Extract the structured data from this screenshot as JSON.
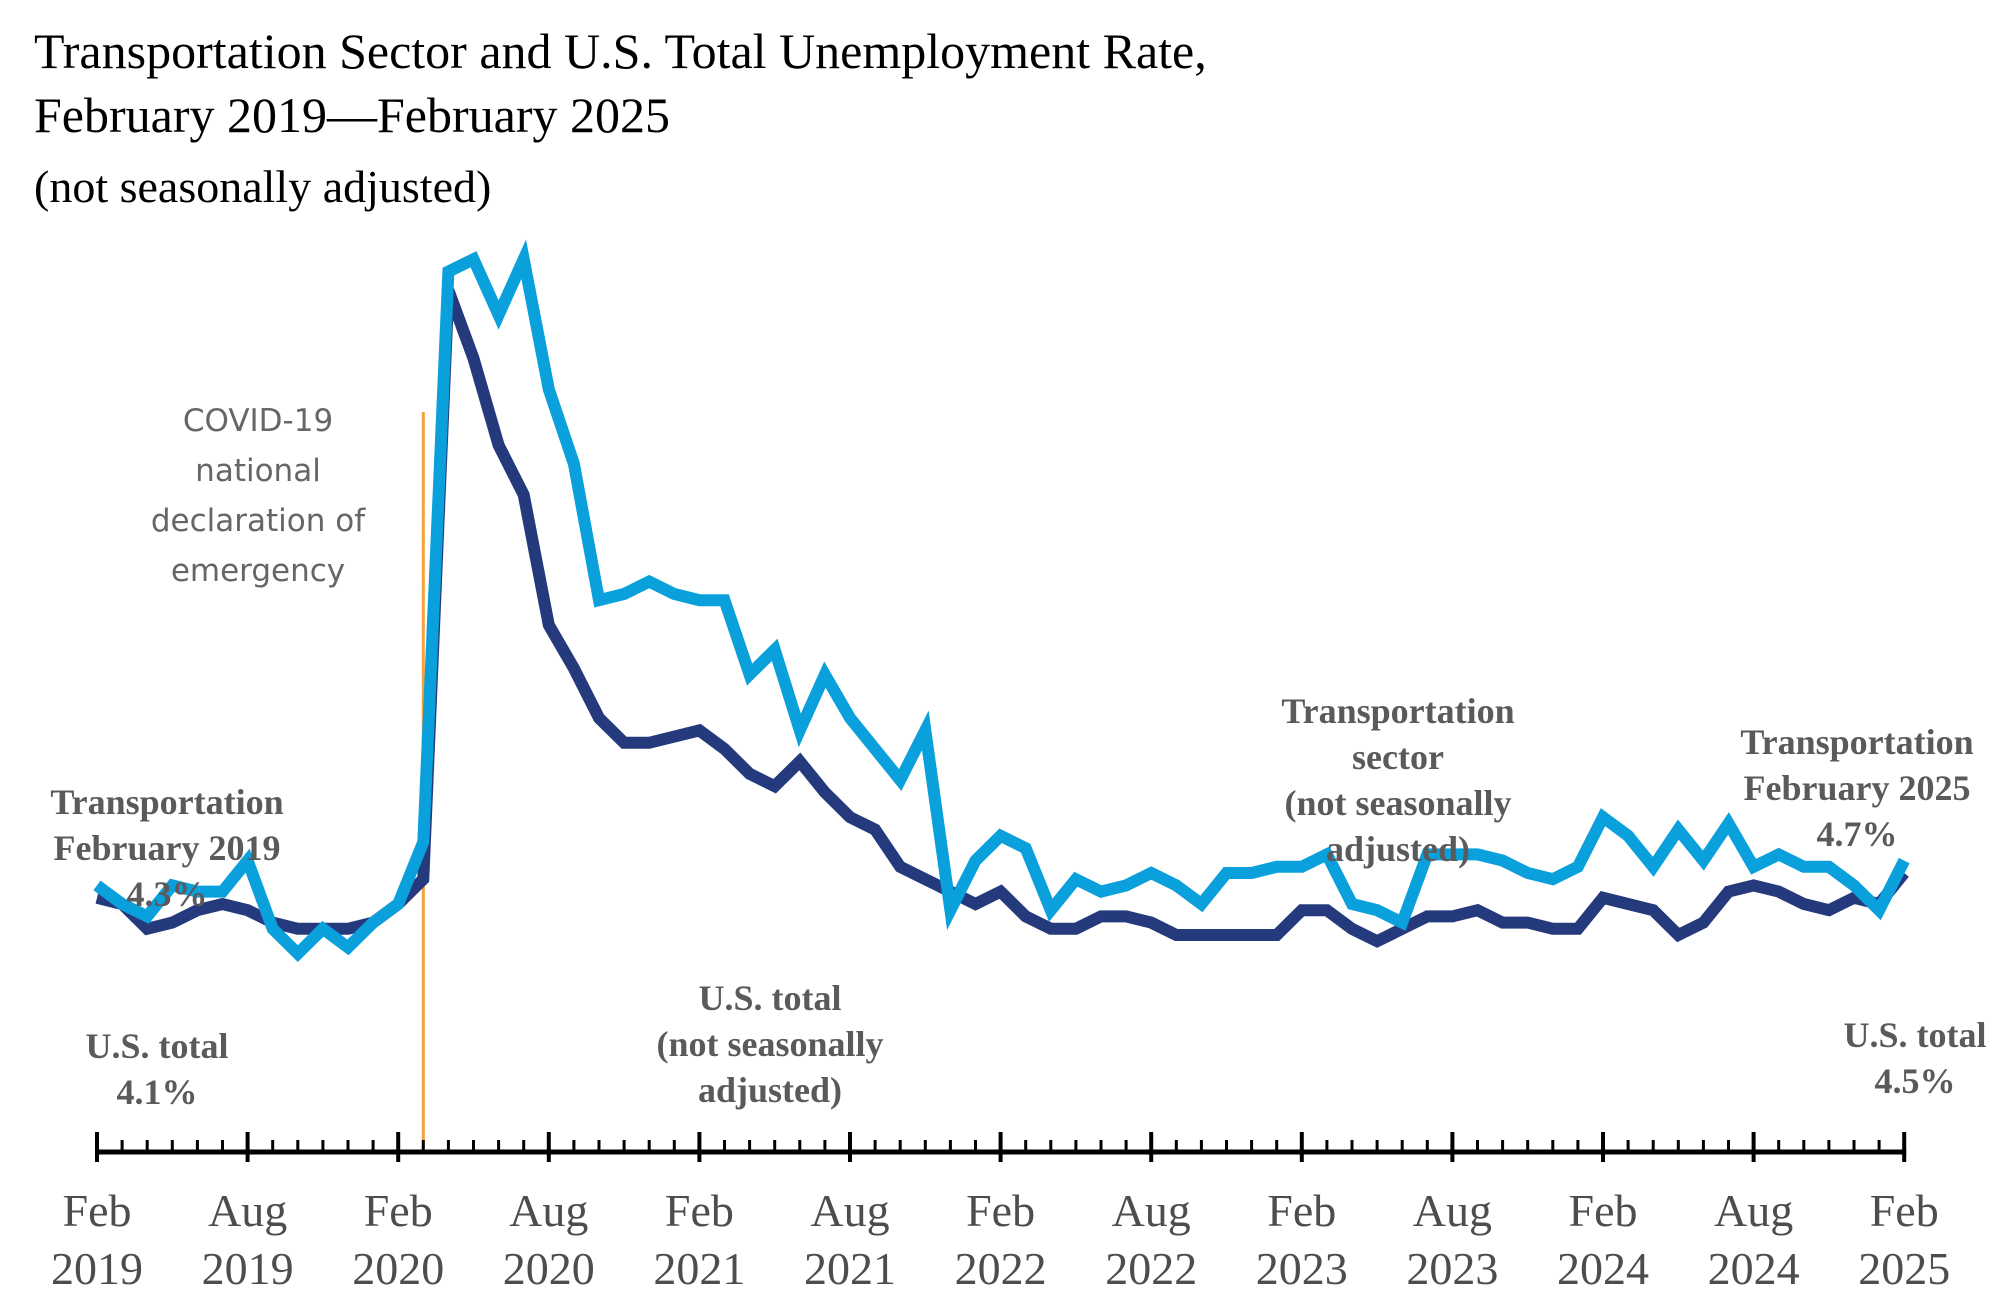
{
  "chart_data": {
    "type": "line",
    "title": "Transportation Sector and U.S. Total Unemployment Rate,",
    "subtitle": "February 2019—February 2025",
    "subtitle2": "(not seasonally adjusted)",
    "xlabel": "",
    "ylabel": "",
    "ylim": [
      0,
      16
    ],
    "grid": false,
    "colors": {
      "transportation": "#0aa0dc",
      "us_total": "#253a7c",
      "covid_line": "#f4a23c",
      "axis": "#000000"
    },
    "x_ticks": [
      {
        "month": [
          "Feb"
        ],
        "year": [
          "2019"
        ]
      },
      {
        "month": [
          "Aug"
        ],
        "year": [
          "2019"
        ]
      },
      {
        "month": [
          "Feb"
        ],
        "year": [
          "2020"
        ]
      },
      {
        "month": [
          "Aug"
        ],
        "year": [
          "2020"
        ]
      },
      {
        "month": [
          "Feb"
        ],
        "year": [
          "2021"
        ]
      },
      {
        "month": [
          "Aug"
        ],
        "year": [
          "2021"
        ]
      },
      {
        "month": [
          "Feb"
        ],
        "year": [
          "2022"
        ]
      },
      {
        "month": [
          "Aug"
        ],
        "year": [
          "2022"
        ]
      },
      {
        "month": [
          "Feb"
        ],
        "year": [
          "2023"
        ]
      },
      {
        "month": [
          "Aug"
        ],
        "year": [
          "2023"
        ]
      },
      {
        "month": [
          "Feb"
        ],
        "year": [
          "2024"
        ]
      },
      {
        "month": [
          "Aug"
        ],
        "year": [
          "2024"
        ]
      },
      {
        "month": [
          "Feb"
        ],
        "year": [
          "2025"
        ]
      }
    ],
    "tick_month_index": [
      0,
      6,
      12,
      18,
      24,
      30,
      36,
      42,
      48,
      54,
      60,
      66,
      72
    ],
    "covid_month_index": 13,
    "series": [
      {
        "name": "Transportation sector (not seasonally adjusted)",
        "values": [
          4.3,
          4.0,
          3.8,
          4.3,
          4.2,
          4.2,
          4.7,
          3.6,
          3.2,
          3.6,
          3.3,
          3.7,
          4.0,
          5.0,
          14.2,
          14.4,
          13.5,
          14.4,
          12.3,
          11.1,
          8.9,
          9.0,
          9.2,
          9.0,
          8.9,
          8.9,
          7.7,
          8.1,
          6.8,
          7.7,
          7.0,
          6.5,
          6.0,
          6.8,
          3.9,
          4.7,
          5.1,
          4.9,
          3.9,
          4.4,
          4.2,
          4.3,
          4.5,
          4.3,
          4.0,
          4.5,
          4.5,
          4.6,
          4.6,
          4.8,
          4.0,
          3.9,
          3.7,
          4.8,
          4.8,
          4.8,
          4.7,
          4.5,
          4.4,
          4.6,
          5.4,
          5.1,
          4.6,
          5.2,
          4.7,
          5.3,
          4.6,
          4.8,
          4.6,
          4.6,
          4.3,
          3.9,
          4.7
        ]
      },
      {
        "name": "U.S. total (not seasonally adjusted)",
        "values": [
          4.1,
          4.0,
          3.6,
          3.7,
          3.9,
          4.0,
          3.9,
          3.7,
          3.6,
          3.6,
          3.6,
          3.7,
          4.0,
          4.4,
          13.9,
          12.8,
          11.4,
          10.6,
          8.5,
          7.8,
          7.0,
          6.6,
          6.6,
          6.7,
          6.8,
          6.5,
          6.1,
          5.9,
          6.3,
          5.8,
          5.4,
          5.2,
          4.6,
          4.4,
          4.2,
          4.0,
          4.2,
          3.8,
          3.6,
          3.6,
          3.8,
          3.8,
          3.7,
          3.5,
          3.5,
          3.5,
          3.5,
          3.5,
          3.9,
          3.9,
          3.6,
          3.4,
          3.6,
          3.8,
          3.8,
          3.9,
          3.7,
          3.7,
          3.6,
          3.6,
          4.1,
          4.0,
          3.9,
          3.5,
          3.7,
          4.2,
          4.3,
          4.2,
          4.0,
          3.9,
          4.1,
          4.0,
          4.5
        ]
      }
    ],
    "annotations": {
      "transportation_start": [
        "Transportation",
        "February 2019",
        "4.3%"
      ],
      "us_total_start": [
        "U.S. total",
        "4.1%"
      ],
      "covid": [
        "COVID-19",
        "national",
        "declaration of",
        "emergency"
      ],
      "us_total_label": [
        "U.S. total",
        "(not seasonally",
        "adjusted)"
      ],
      "transportation_label": [
        "Transportation",
        "sector",
        "(not seasonally",
        "adjusted)"
      ],
      "transportation_end": [
        "Transportation",
        "February 2025",
        "4.7%"
      ],
      "us_total_end": [
        "U.S. total",
        "4.5%"
      ]
    }
  }
}
